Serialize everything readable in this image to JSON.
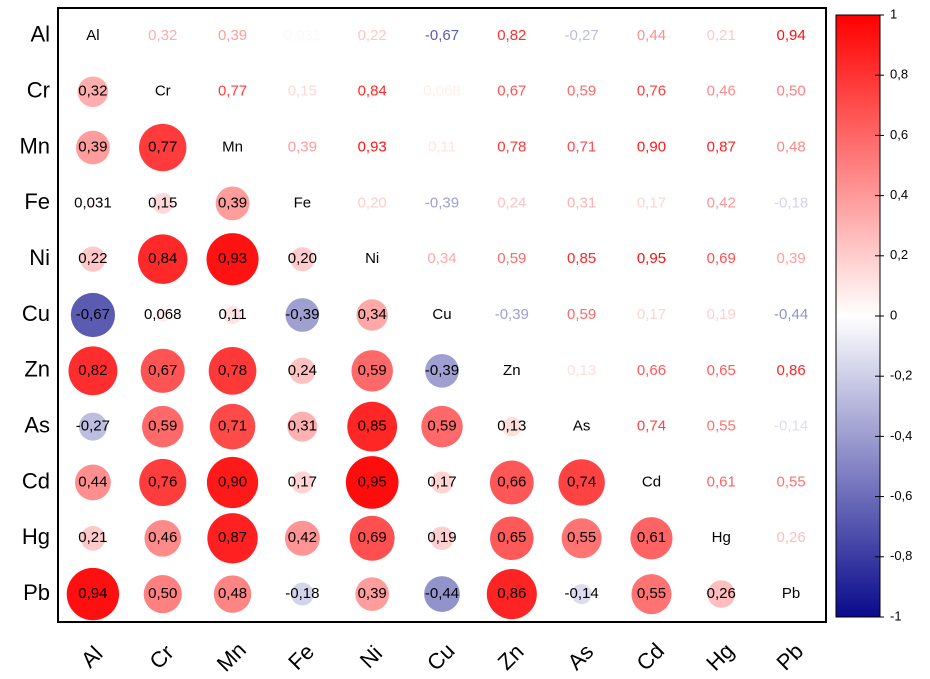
{
  "chart_data": {
    "type": "correlogram",
    "rows": [
      "Al",
      "Cr",
      "Mn",
      "Fe",
      "Ni",
      "Cu",
      "Zn",
      "As",
      "Cd",
      "Hg",
      "Pb"
    ],
    "columns": [
      "Al",
      "Cr",
      "Mn",
      "Fe",
      "Ni",
      "Cu",
      "Zn",
      "As",
      "Cd",
      "Hg",
      "Pb"
    ],
    "values": [
      [
        null,
        0.32,
        0.39,
        0.031,
        0.22,
        -0.67,
        0.82,
        -0.27,
        0.44,
        0.21,
        0.94
      ],
      [
        0.32,
        null,
        0.77,
        0.15,
        0.84,
        0.068,
        0.67,
        0.59,
        0.76,
        0.46,
        0.5
      ],
      [
        0.39,
        0.77,
        null,
        0.39,
        0.93,
        0.11,
        0.78,
        0.71,
        0.9,
        0.87,
        0.48
      ],
      [
        0.031,
        0.15,
        0.39,
        null,
        0.2,
        -0.39,
        0.24,
        0.31,
        0.17,
        0.42,
        -0.18
      ],
      [
        0.22,
        0.84,
        0.93,
        0.2,
        null,
        0.34,
        0.59,
        0.85,
        0.95,
        0.69,
        0.39
      ],
      [
        -0.67,
        0.068,
        0.11,
        -0.39,
        0.34,
        null,
        -0.39,
        0.59,
        0.17,
        0.19,
        -0.44
      ],
      [
        0.82,
        0.67,
        0.78,
        0.24,
        0.59,
        -0.39,
        null,
        0.13,
        0.66,
        0.65,
        0.86
      ],
      [
        -0.27,
        0.59,
        0.71,
        0.31,
        0.85,
        0.59,
        0.13,
        null,
        0.74,
        0.55,
        -0.14
      ],
      [
        0.44,
        0.76,
        0.9,
        0.17,
        0.95,
        0.17,
        0.66,
        0.74,
        null,
        0.61,
        0.55
      ],
      [
        0.21,
        0.46,
        0.87,
        0.42,
        0.69,
        0.19,
        0.65,
        0.55,
        0.61,
        null,
        0.26
      ],
      [
        0.94,
        0.5,
        0.48,
        -0.18,
        0.39,
        -0.44,
        0.86,
        -0.14,
        0.55,
        0.26,
        null
      ]
    ],
    "value_labels": [
      [
        "Al",
        "0,32",
        "0,39",
        "0,031",
        "0,22",
        "-0,67",
        "0,82",
        "-0,27",
        "0,44",
        "0,21",
        "0,94"
      ],
      [
        "0,32",
        "Cr",
        "0,77",
        "0,15",
        "0,84",
        "0,068",
        "0,67",
        "0,59",
        "0,76",
        "0,46",
        "0,50"
      ],
      [
        "0,39",
        "0,77",
        "Mn",
        "0,39",
        "0,93",
        "0,11",
        "0,78",
        "0,71",
        "0,90",
        "0,87",
        "0,48"
      ],
      [
        "0,031",
        "0,15",
        "0,39",
        "Fe",
        "0,20",
        "-0,39",
        "0,24",
        "0,31",
        "0,17",
        "0,42",
        "-0,18"
      ],
      [
        "0,22",
        "0,84",
        "0,93",
        "0,20",
        "Ni",
        "0,34",
        "0,59",
        "0,85",
        "0,95",
        "0,69",
        "0,39"
      ],
      [
        "-0,67",
        "0,068",
        "0,11",
        "-0,39",
        "0,34",
        "Cu",
        "-0,39",
        "0,59",
        "0,17",
        "0,19",
        "-0,44"
      ],
      [
        "0,82",
        "0,67",
        "0,78",
        "0,24",
        "0,59",
        "-0,39",
        "Zn",
        "0,13",
        "0,66",
        "0,65",
        "0,86"
      ],
      [
        "-0,27",
        "0,59",
        "0,71",
        "0,31",
        "0,85",
        "0,59",
        "0,13",
        "As",
        "0,74",
        "0,55",
        "-0,14"
      ],
      [
        "0,44",
        "0,76",
        "0,90",
        "0,17",
        "0,95",
        "0,17",
        "0,66",
        "0,74",
        "Cd",
        "0,61",
        "0,55"
      ],
      [
        "0,21",
        "0,46",
        "0,87",
        "0,42",
        "0,69",
        "0,19",
        "0,65",
        "0,55",
        "0,61",
        "Hg",
        "0,26"
      ],
      [
        "0,94",
        "0,50",
        "0,48",
        "-0,18",
        "0,39",
        "-0,44",
        "0,86",
        "-0,14",
        "0,55",
        "0,26",
        "Pb"
      ]
    ],
    "colors": {
      "negative": "#0a0a8c",
      "zero": "#ffffff",
      "positive": "#ff0000"
    },
    "clim": [
      -1,
      1
    ],
    "cticks": [
      -1,
      {
        "value": -0.8,
        "label": "-0,8"
      },
      {
        "value": -0.6,
        "label": "-0,6"
      },
      {
        "value": -0.4,
        "label": "-0,4"
      },
      {
        "value": -0.2,
        "label": "-0,2"
      },
      0,
      {
        "value": 0.2,
        "label": "0,2"
      },
      {
        "value": 0.4,
        "label": "0,4"
      },
      {
        "value": 0.6,
        "label": "0,6"
      },
      {
        "value": 0.8,
        "label": "0,8"
      },
      1
    ]
  }
}
